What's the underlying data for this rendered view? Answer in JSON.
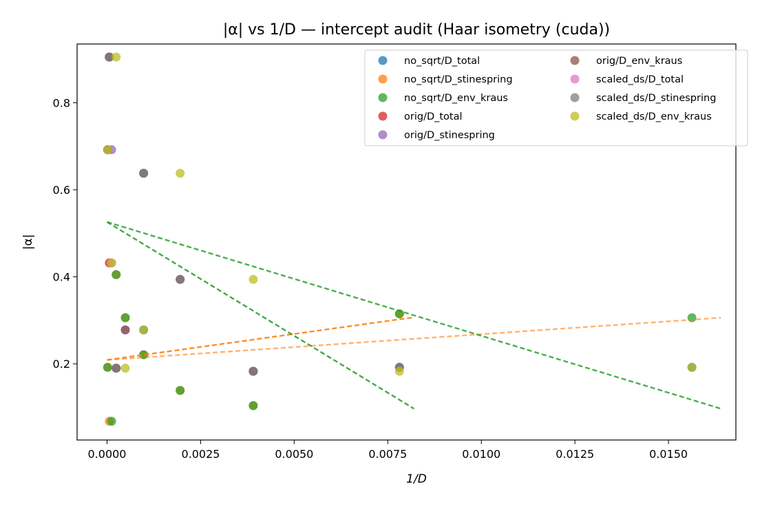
{
  "chart_data": {
    "type": "scatter",
    "title": "|α| vs 1/D — intercept audit (Haar isometry (cuda))",
    "xlabel": "1/D",
    "ylabel": "|α|",
    "xlim": [
      -0.0008,
      0.0168
    ],
    "ylim": [
      0.025,
      0.935
    ],
    "xticks": [
      0.0,
      0.0025,
      0.005,
      0.0075,
      0.01,
      0.0125,
      0.015
    ],
    "xtick_labels": [
      "0.0000",
      "0.0025",
      "0.0050",
      "0.0075",
      "0.0100",
      "0.0125",
      "0.0150"
    ],
    "yticks": [
      0.2,
      0.4,
      0.6,
      0.8
    ],
    "ytick_labels": [
      "0.2",
      "0.4",
      "0.6",
      "0.8"
    ],
    "grid": false,
    "legend_position": "top-right",
    "series": [
      {
        "name": "no_sqrt/D_total",
        "color": "#1f77b4",
        "x": [
          6.1e-05,
          0.000244,
          0.000977,
          0.003906,
          0.015625
        ],
        "y": [
          0.905,
          0.19,
          0.278,
          0.183,
          0.192
        ]
      },
      {
        "name": "no_sqrt/D_stinespring",
        "color": "#ff7f0e",
        "x": [
          1.5e-05,
          6.1e-05,
          0.000244,
          0.000488,
          0.000977,
          0.001953,
          0.003906,
          0.007812
        ],
        "y": [
          0.192,
          0.068,
          0.405,
          0.306,
          0.221,
          0.139,
          0.104,
          0.315
        ]
      },
      {
        "name": "no_sqrt/D_env_kraus",
        "color": "#2ca02c",
        "x": [
          1.5e-05,
          0.000122,
          0.000244,
          0.000488,
          0.000977,
          0.001953,
          0.003906,
          0.007812,
          0.015625
        ],
        "y": [
          0.192,
          0.068,
          0.405,
          0.306,
          0.221,
          0.139,
          0.104,
          0.315,
          0.306
        ]
      },
      {
        "name": "orig/D_total",
        "color": "#d62728",
        "x": [
          1.5e-05,
          6.1e-05
        ],
        "y": [
          0.692,
          0.432
        ]
      },
      {
        "name": "orig/D_stinespring",
        "color": "#9467bd",
        "x": [
          6.1e-05,
          0.000122,
          0.000244,
          0.000488,
          0.000977,
          0.001953,
          0.003906,
          0.007812
        ],
        "y": [
          0.905,
          0.692,
          0.19,
          0.278,
          0.638,
          0.394,
          0.183,
          0.192
        ]
      },
      {
        "name": "orig/D_env_kraus",
        "color": "#8c564b",
        "x": [
          6.1e-05,
          0.000244,
          0.000488,
          0.000977,
          0.001953,
          0.003906,
          0.007812
        ],
        "y": [
          0.905,
          0.19,
          0.278,
          0.638,
          0.394,
          0.183,
          0.192
        ]
      },
      {
        "name": "scaled_ds/D_total",
        "color": "#e377c2",
        "x": [
          1.5e-05,
          0.000122
        ],
        "y": [
          0.692,
          0.432
        ]
      },
      {
        "name": "scaled_ds/D_stinespring",
        "color": "#7f7f7f",
        "x": [
          1.5e-05,
          6.1e-05,
          0.000244,
          0.000977,
          0.001953,
          0.003906,
          0.007812
        ],
        "y": [
          0.692,
          0.905,
          0.19,
          0.638,
          0.394,
          0.183,
          0.192
        ]
      },
      {
        "name": "scaled_ds/D_env_kraus",
        "color": "#bcbd22",
        "x": [
          1.5e-05,
          0.000122,
          0.000244,
          0.000488,
          0.000977,
          0.001953,
          0.003906,
          0.007812,
          0.015625
        ],
        "y": [
          0.692,
          0.432,
          0.905,
          0.19,
          0.278,
          0.638,
          0.394,
          0.183,
          0.192
        ]
      }
    ],
    "fit_lines": [
      {
        "color": "#ff7f0e",
        "opacity": 0.9,
        "x": [
          0.0,
          0.0082
        ],
        "y": [
          0.209,
          0.307
        ]
      },
      {
        "color": "#ff7f0e",
        "opacity": 0.6,
        "x": [
          0.0,
          0.0164
        ],
        "y": [
          0.209,
          0.306
        ]
      },
      {
        "color": "#2ca02c",
        "opacity": 0.9,
        "x": [
          0.0,
          0.0082
        ],
        "y": [
          0.526,
          0.097
        ]
      },
      {
        "color": "#2ca02c",
        "opacity": 0.85,
        "x": [
          0.0,
          0.0164
        ],
        "y": [
          0.526,
          0.097
        ]
      }
    ]
  }
}
